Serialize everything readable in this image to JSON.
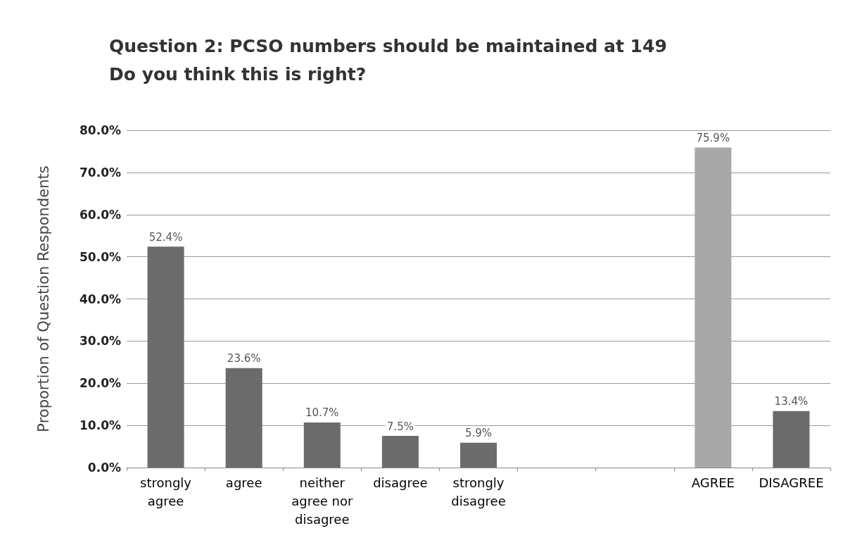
{
  "chart_data": {
    "type": "bar",
    "title": "Question 2: PCSO numbers should be maintained at 149\nDo you think this is right?",
    "ylabel": "Proportion of Question Respondents",
    "categories": [
      "strongly\nagree",
      "agree",
      "neither\nagree nor\ndisagree",
      "disagree",
      "strongly\ndisagree",
      null,
      null,
      "AGREE",
      "DISAGREE"
    ],
    "values": [
      52.4,
      23.6,
      10.7,
      7.5,
      5.9,
      null,
      null,
      75.9,
      13.4
    ],
    "colors": [
      "#6b6b6b",
      "#6b6b6b",
      "#6b6b6b",
      "#6b6b6b",
      "#6b6b6b",
      "#6b6b6b",
      "#6b6b6b",
      "#a8a8a8",
      "#6b6b6b"
    ],
    "value_labels": [
      "52.4%",
      "23.6%",
      "10.7%",
      "7.5%",
      "5.9%",
      null,
      null,
      "75.9%",
      "13.4%"
    ],
    "ylim": [
      0,
      80
    ],
    "yticks": [
      {
        "value": 0,
        "label": "0.0%"
      },
      {
        "value": 10,
        "label": "10.0%"
      },
      {
        "value": 20,
        "label": "20.0%"
      },
      {
        "value": 30,
        "label": "30.0%"
      },
      {
        "value": 40,
        "label": "40.0%"
      },
      {
        "value": 50,
        "label": "50.0%"
      },
      {
        "value": 60,
        "label": "60.0%"
      },
      {
        "value": 70,
        "label": "70.0%"
      },
      {
        "value": 80,
        "label": "80.0%"
      }
    ],
    "grid": "y"
  }
}
